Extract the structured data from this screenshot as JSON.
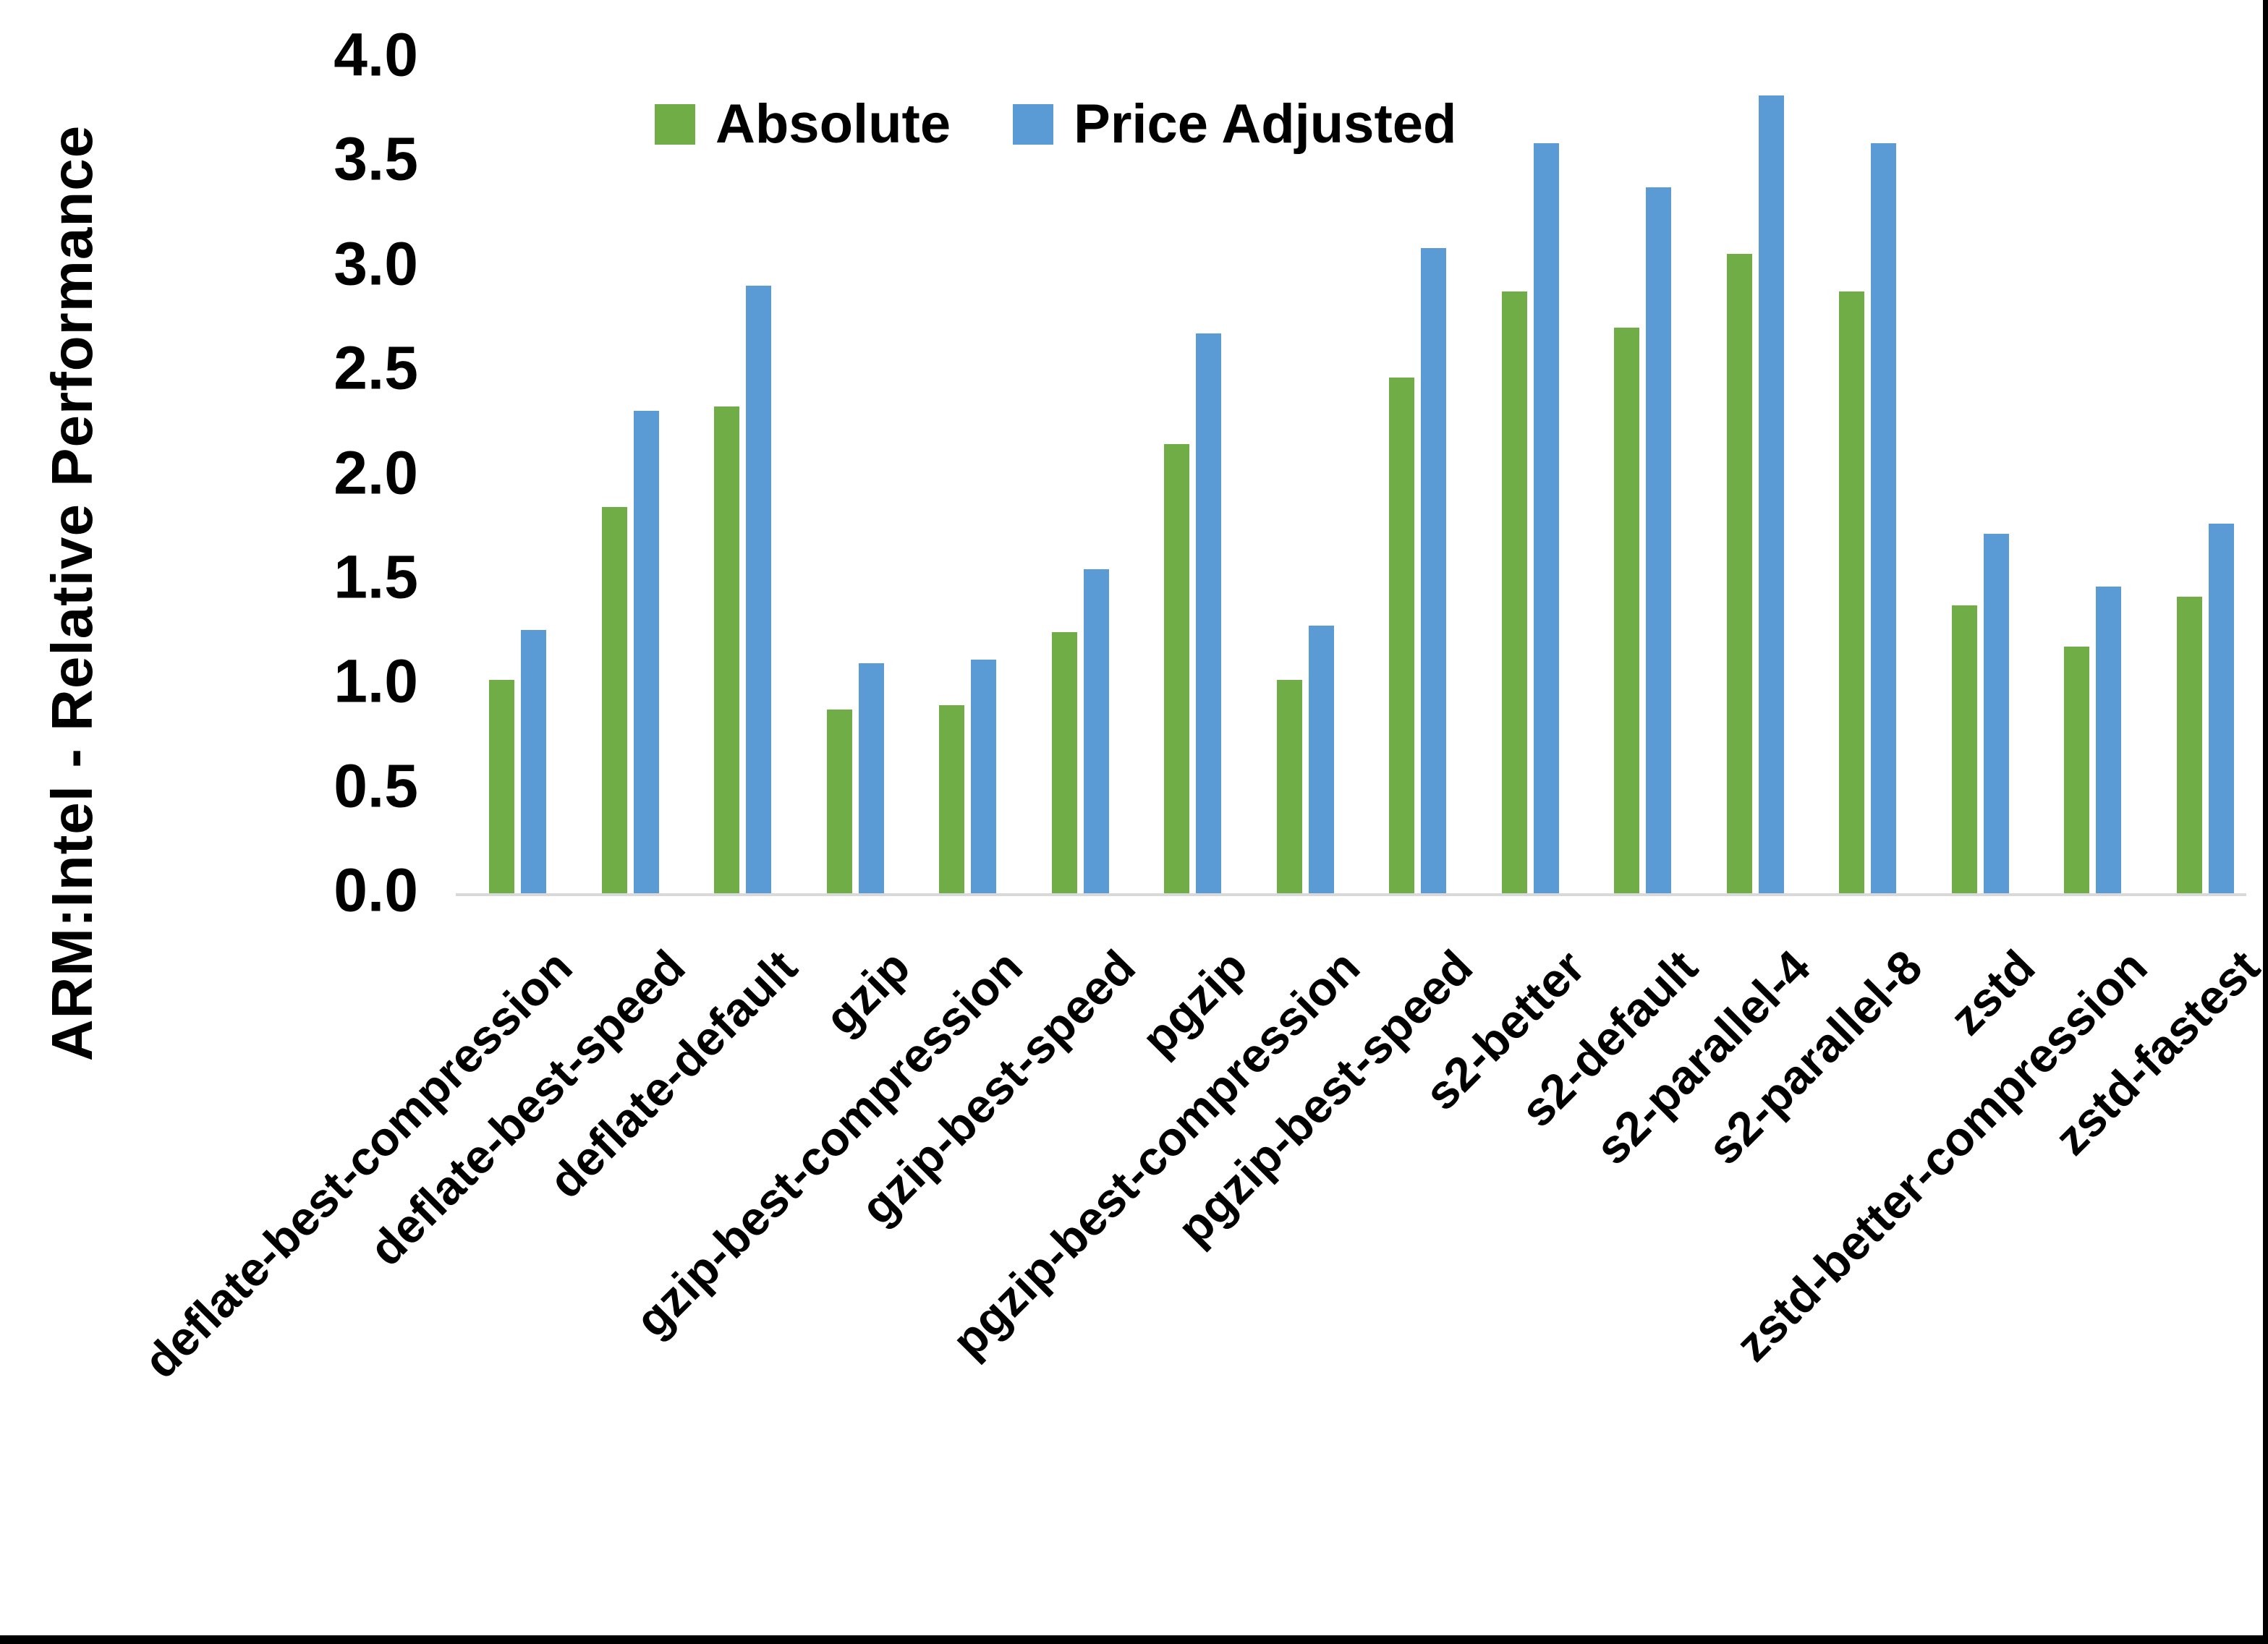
{
  "chart_data": {
    "type": "bar",
    "title": "",
    "xlabel": "",
    "ylabel": "ARM:Intel - Relative Performance",
    "ylim": [
      0.0,
      4.0
    ],
    "ytick_step": 0.5,
    "ytick_labels": [
      "0.0",
      "0.5",
      "1.0",
      "1.5",
      "2.0",
      "2.5",
      "3.0",
      "3.5",
      "4.0"
    ],
    "grid": false,
    "legend_position": "top-center",
    "categories": [
      "deflate-best-compression",
      "deflate-best-speed",
      "deflate-default",
      "gzip",
      "gzip-best-compression",
      "gzip-best-speed",
      "pgzip",
      "pgzip-best-compression",
      "pgzip-best-speed",
      "s2-better",
      "s2-default",
      "s2-parallel-4",
      "s2-parallel-8",
      "zstd",
      "zstd-better-compression",
      "zstd-fastest"
    ],
    "series": [
      {
        "name": "Absolute",
        "color": "#70AD47",
        "values": [
          1.02,
          1.85,
          2.33,
          0.88,
          0.9,
          1.25,
          2.15,
          1.02,
          2.47,
          2.88,
          2.71,
          3.06,
          2.88,
          1.38,
          1.18,
          1.42
        ]
      },
      {
        "name": "Price Adjusted",
        "color": "#5B9BD5",
        "values": [
          1.26,
          2.31,
          2.91,
          1.1,
          1.12,
          1.55,
          2.68,
          1.28,
          3.09,
          3.59,
          3.38,
          3.82,
          3.59,
          1.72,
          1.47,
          1.77
        ]
      }
    ],
    "colors": {
      "axis_line": "#d9d9d9",
      "text": "#000000",
      "background": "#ffffff"
    }
  }
}
